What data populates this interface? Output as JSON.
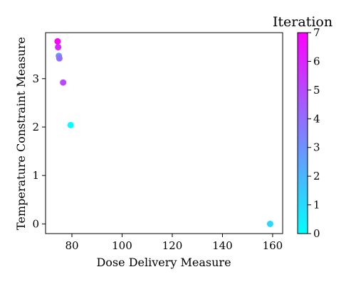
{
  "chart_data": {
    "type": "scatter",
    "xlabel": "Dose Delivery Measure",
    "ylabel": "Temperature Constraint Measure",
    "xlim": [
      69.5,
      164
    ],
    "ylim": [
      -0.2,
      3.95
    ],
    "x_ticks": [
      80,
      100,
      120,
      140,
      160
    ],
    "y_ticks": [
      0,
      1,
      2,
      3
    ],
    "grid": false,
    "points": [
      {
        "x": 159,
        "y": 0.0,
        "iteration": 1
      },
      {
        "x": 79.5,
        "y": 2.04,
        "iteration": 0
      },
      {
        "x": 74.8,
        "y": 3.47,
        "iteration": 3
      },
      {
        "x": 75.0,
        "y": 3.42,
        "iteration": 4
      },
      {
        "x": 76.5,
        "y": 2.92,
        "iteration": 5
      },
      {
        "x": 74.5,
        "y": 3.65,
        "iteration": 6
      },
      {
        "x": 74.3,
        "y": 3.77,
        "iteration": 7
      }
    ],
    "colorbar": {
      "title": "Iteration",
      "range": [
        0,
        7
      ],
      "ticks": [
        0,
        1,
        2,
        3,
        4,
        5,
        6,
        7
      ],
      "colormap": "cool",
      "color_low": "#00ffff",
      "color_high": "#ff00ff"
    }
  }
}
